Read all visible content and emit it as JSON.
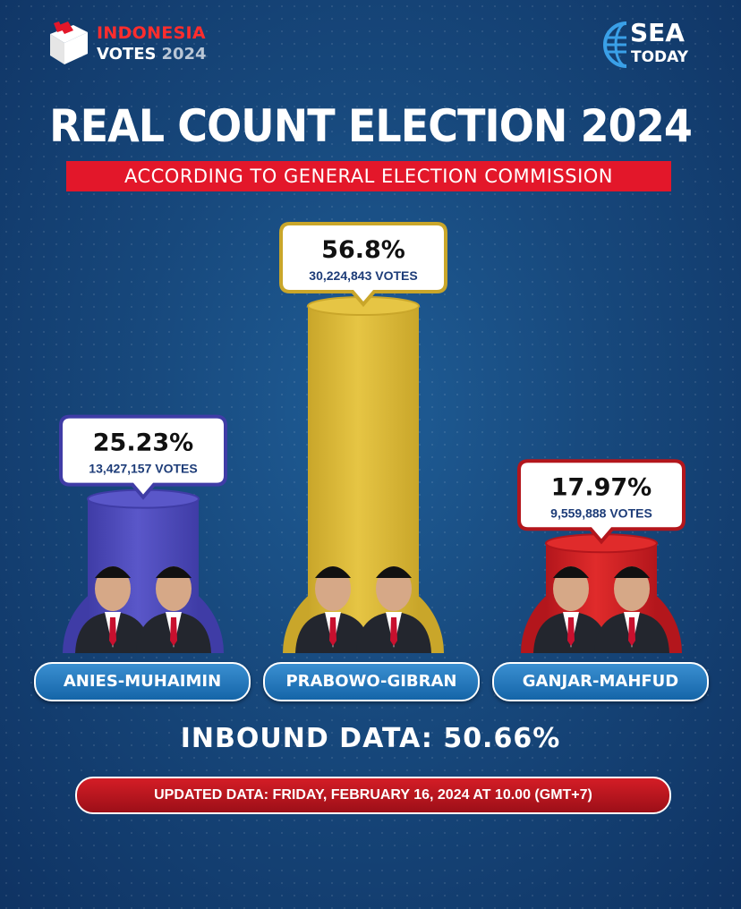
{
  "logo": {
    "line1": "INDONESIA",
    "line2": "VOTES",
    "year": "2024",
    "brand1": "SEA",
    "brand2": "TODAY"
  },
  "title": "REAL COUNT ELECTION 2024",
  "subtitle": "ACCORDING TO GENERAL ELECTION COMMISSION",
  "colors": {
    "anies": "#5a57c9",
    "prabowo": "#e6c544",
    "ganjar": "#e02b2b",
    "accent_red": "#e3172a"
  },
  "chart_data": {
    "type": "bar",
    "categories": [
      "ANIES-MUHAIMIN",
      "PRABOWO-GIBRAN",
      "GANJAR-MAHFUD"
    ],
    "values": [
      25.23,
      56.8,
      17.97
    ],
    "value_labels": [
      "25.23%",
      "56.8%",
      "17.97%"
    ],
    "votes": [
      "13,427,157 VOTES",
      "30,224,843 VOTES",
      "9,559,888 VOTES"
    ],
    "colors": [
      "#5a57c9",
      "#e6c544",
      "#e02b2b"
    ]
  },
  "inbound": "INBOUND DATA: 50.66%",
  "updated": "UPDATED DATA: FRIDAY, FEBRUARY 16, 2024 AT 10.00 (GMT+7)"
}
